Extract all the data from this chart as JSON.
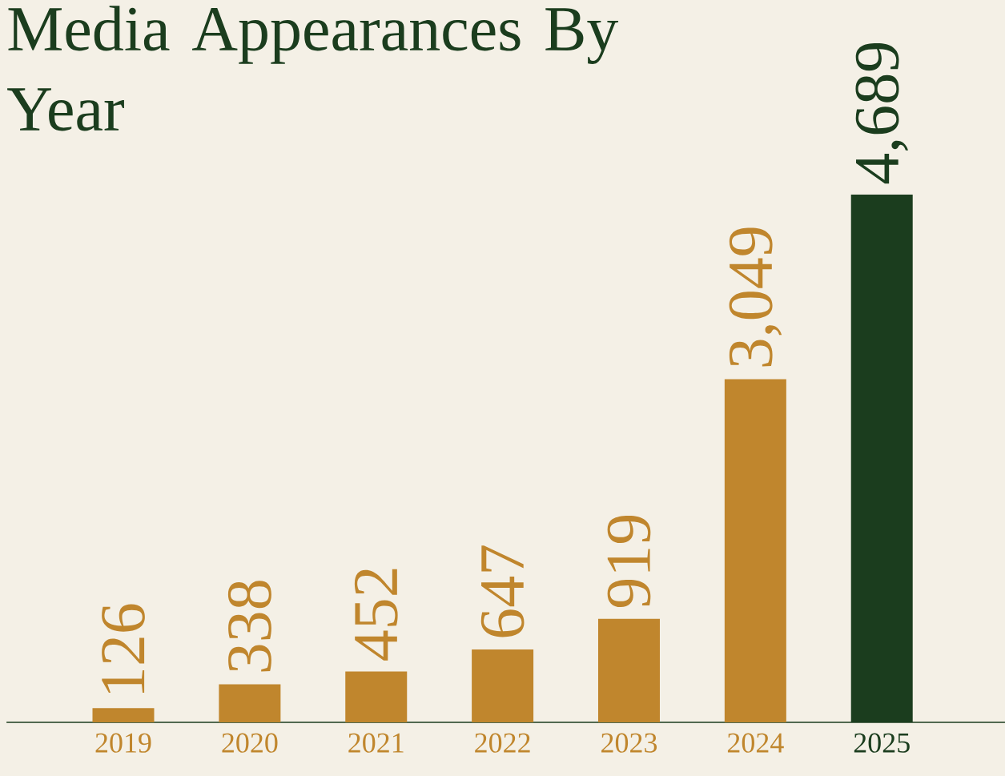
{
  "chart_data": {
    "type": "bar",
    "title": "Media Appearances By Year",
    "categories": [
      "2019",
      "2020",
      "2021",
      "2022",
      "2023",
      "2024",
      "2025"
    ],
    "values": [
      126,
      338,
      452,
      647,
      919,
      3049,
      4689
    ],
    "colors": [
      "#c0862d",
      "#c0862d",
      "#c0862d",
      "#c0862d",
      "#c0862d",
      "#c0862d",
      "#1b3d1e"
    ],
    "value_labels": [
      "126",
      "338",
      "452",
      "647",
      "919",
      "3,049",
      "4,689"
    ]
  }
}
